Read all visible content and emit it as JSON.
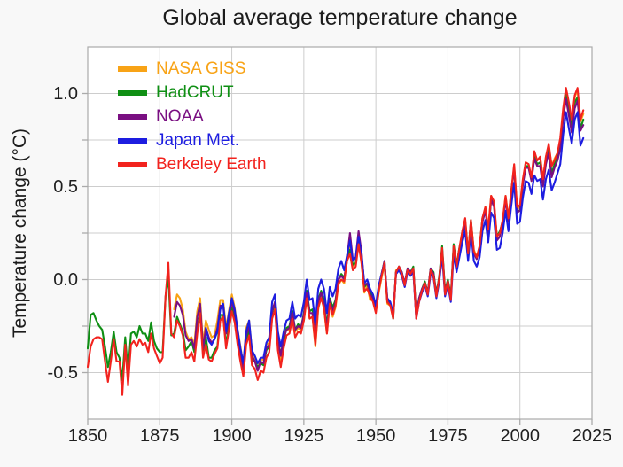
{
  "window": {
    "kind": "static chart image",
    "background": "#f8f8f8"
  },
  "colors": {
    "figure_bg": "#f8f8f8",
    "plot_bg": "#ffffff",
    "grid": "#cdcdcd",
    "spine": "#aaaaaa",
    "tick": "#aaaaaa",
    "text": "#1c1c1c"
  },
  "chart_data": {
    "type": "line",
    "title": "Global average temperature change",
    "xlabel": "",
    "ylabel": "Temperature change (°C)",
    "xlim": [
      1850,
      2025
    ],
    "ylim": [
      -0.75,
      1.25
    ],
    "grid": true,
    "grid_y_step": 0.25,
    "grid_x_step_years": 25,
    "legend_position": "top-left inside plot, no frame",
    "xticks": [
      {
        "v": 1850,
        "label": "1850"
      },
      {
        "v": 1875,
        "label": "1875"
      },
      {
        "v": 1900,
        "label": "1900"
      },
      {
        "v": 1925,
        "label": "1925"
      },
      {
        "v": 1950,
        "label": "1950"
      },
      {
        "v": 1975,
        "label": "1975"
      },
      {
        "v": 2000,
        "label": "2000"
      },
      {
        "v": 2025,
        "label": "2025"
      }
    ],
    "yticks": [
      {
        "v": 1.0,
        "label": "1.0"
      },
      {
        "v": 0.5,
        "label": "0.5"
      },
      {
        "v": 0.0,
        "label": "0.0"
      },
      {
        "v": -0.5,
        "label": "-0.5"
      }
    ],
    "units": "°C anomaly",
    "series": [
      {
        "name": "NASA GISS",
        "color": "#f8a316",
        "start_year": 1880,
        "values": [
          -0.16,
          -0.08,
          -0.1,
          -0.16,
          -0.28,
          -0.32,
          -0.31,
          -0.35,
          -0.17,
          -0.1,
          -0.35,
          -0.22,
          -0.27,
          -0.31,
          -0.3,
          -0.22,
          -0.11,
          -0.11,
          -0.26,
          -0.17,
          -0.08,
          -0.15,
          -0.27,
          -0.36,
          -0.46,
          -0.26,
          -0.22,
          -0.38,
          -0.42,
          -0.48,
          -0.43,
          -0.43,
          -0.35,
          -0.34,
          -0.15,
          -0.13,
          -0.35,
          -0.45,
          -0.29,
          -0.27,
          -0.27,
          -0.18,
          -0.28,
          -0.26,
          -0.27,
          -0.22,
          -0.1,
          -0.21,
          -0.2,
          -0.36,
          -0.16,
          -0.09,
          -0.16,
          -0.29,
          -0.12,
          -0.2,
          -0.15,
          -0.03,
          0.0,
          -0.02,
          0.13,
          0.19,
          0.07,
          0.09,
          0.2,
          0.09,
          -0.07,
          -0.03,
          -0.11,
          -0.11,
          -0.17,
          -0.07,
          0.01,
          0.08,
          -0.13,
          -0.14,
          -0.19,
          0.05,
          0.06,
          0.03,
          -0.03,
          0.06,
          0.03,
          0.05,
          -0.2,
          -0.11,
          -0.06,
          -0.02,
          -0.08,
          0.05,
          0.03,
          -0.08,
          0.01,
          0.16,
          -0.07,
          -0.01,
          -0.1,
          0.18,
          0.07,
          0.16,
          0.26,
          0.32,
          0.14,
          0.31,
          0.16,
          0.12,
          0.18,
          0.32,
          0.39,
          0.27,
          0.45,
          0.41,
          0.22,
          0.23,
          0.31,
          0.45,
          0.33,
          0.46,
          0.61,
          0.38,
          0.39,
          0.53,
          0.63,
          0.62,
          0.53,
          0.68,
          0.64,
          0.66,
          0.54,
          0.66,
          0.72,
          0.61,
          0.65,
          0.68,
          0.74,
          0.9,
          1.02,
          0.92,
          0.85,
          0.98,
          1.02,
          0.85,
          0.89
        ]
      },
      {
        "name": "HadCRUT",
        "color": "#0f8f14",
        "start_year": 1850,
        "values": [
          -0.37,
          -0.19,
          -0.18,
          -0.22,
          -0.25,
          -0.27,
          -0.36,
          -0.47,
          -0.39,
          -0.28,
          -0.39,
          -0.42,
          -0.54,
          -0.31,
          -0.5,
          -0.29,
          -0.28,
          -0.31,
          -0.25,
          -0.29,
          -0.29,
          -0.33,
          -0.23,
          -0.33,
          -0.37,
          -0.39,
          -0.39,
          -0.09,
          0.01,
          -0.3,
          -0.29,
          -0.2,
          -0.24,
          -0.28,
          -0.38,
          -0.36,
          -0.33,
          -0.39,
          -0.27,
          -0.17,
          -0.39,
          -0.31,
          -0.42,
          -0.42,
          -0.38,
          -0.36,
          -0.19,
          -0.19,
          -0.35,
          -0.25,
          -0.15,
          -0.21,
          -0.32,
          -0.42,
          -0.5,
          -0.33,
          -0.27,
          -0.44,
          -0.44,
          -0.47,
          -0.45,
          -0.46,
          -0.38,
          -0.36,
          -0.18,
          -0.12,
          -0.33,
          -0.4,
          -0.33,
          -0.26,
          -0.25,
          -0.17,
          -0.27,
          -0.24,
          -0.26,
          -0.18,
          -0.06,
          -0.17,
          -0.16,
          -0.3,
          -0.11,
          -0.06,
          -0.11,
          -0.25,
          -0.1,
          -0.15,
          -0.11,
          0.0,
          0.03,
          0.01,
          0.1,
          0.16,
          0.08,
          0.09,
          0.23,
          0.14,
          -0.04,
          -0.02,
          -0.06,
          -0.1,
          -0.17,
          -0.04,
          0.03,
          0.1,
          -0.11,
          -0.13,
          -0.21,
          0.04,
          0.07,
          0.04,
          -0.03,
          0.06,
          0.04,
          0.07,
          -0.19,
          -0.1,
          -0.05,
          -0.01,
          -0.07,
          0.06,
          0.04,
          -0.08,
          0.02,
          0.18,
          -0.06,
          0.0,
          -0.09,
          0.19,
          0.08,
          0.17,
          0.24,
          0.31,
          0.14,
          0.32,
          0.14,
          0.12,
          0.17,
          0.33,
          0.38,
          0.26,
          0.43,
          0.4,
          0.23,
          0.26,
          0.31,
          0.44,
          0.32,
          0.48,
          0.6,
          0.37,
          0.37,
          0.52,
          0.61,
          0.61,
          0.54,
          0.66,
          0.62,
          0.63,
          0.52,
          0.63,
          0.7,
          0.57,
          0.62,
          0.66,
          0.71,
          0.88,
          1.0,
          0.9,
          0.82,
          0.95,
          0.98,
          0.81,
          0.86
        ]
      },
      {
        "name": "NOAA",
        "color": "#7a0f82",
        "start_year": 1880,
        "values": [
          -0.2,
          -0.12,
          -0.14,
          -0.19,
          -0.3,
          -0.33,
          -0.32,
          -0.37,
          -0.2,
          -0.13,
          -0.37,
          -0.26,
          -0.31,
          -0.34,
          -0.32,
          -0.26,
          -0.14,
          -0.14,
          -0.29,
          -0.2,
          -0.12,
          -0.18,
          -0.3,
          -0.39,
          -0.48,
          -0.3,
          -0.25,
          -0.41,
          -0.44,
          -0.49,
          -0.44,
          -0.45,
          -0.37,
          -0.35,
          -0.17,
          -0.12,
          -0.33,
          -0.41,
          -0.31,
          -0.27,
          -0.26,
          -0.18,
          -0.27,
          -0.25,
          -0.26,
          -0.19,
          -0.07,
          -0.18,
          -0.18,
          -0.32,
          -0.12,
          -0.07,
          -0.13,
          -0.27,
          -0.11,
          -0.17,
          -0.12,
          0.0,
          0.02,
          0.0,
          0.12,
          0.25,
          0.11,
          0.12,
          0.26,
          0.15,
          -0.03,
          -0.02,
          -0.08,
          -0.1,
          -0.16,
          -0.05,
          0.03,
          0.1,
          -0.12,
          -0.13,
          -0.2,
          0.04,
          0.07,
          0.04,
          -0.02,
          0.06,
          0.04,
          0.06,
          -0.2,
          -0.1,
          -0.05,
          -0.02,
          -0.07,
          0.06,
          0.03,
          -0.08,
          0.01,
          0.16,
          -0.07,
          -0.01,
          -0.1,
          0.17,
          0.07,
          0.16,
          0.24,
          0.3,
          0.13,
          0.3,
          0.14,
          0.11,
          0.17,
          0.31,
          0.37,
          0.25,
          0.43,
          0.39,
          0.21,
          0.23,
          0.3,
          0.43,
          0.31,
          0.47,
          0.6,
          0.36,
          0.37,
          0.51,
          0.6,
          0.6,
          0.53,
          0.65,
          0.61,
          0.61,
          0.5,
          0.62,
          0.68,
          0.55,
          0.6,
          0.64,
          0.7,
          0.87,
          0.97,
          0.88,
          0.79,
          0.92,
          0.96,
          0.8,
          0.83
        ]
      },
      {
        "name": "Japan Met.",
        "color": "#1d1de0",
        "start_year": 1891,
        "values": [
          -0.26,
          -0.33,
          -0.35,
          -0.32,
          -0.28,
          -0.16,
          -0.13,
          -0.28,
          -0.18,
          -0.1,
          -0.16,
          -0.27,
          -0.37,
          -0.45,
          -0.28,
          -0.22,
          -0.38,
          -0.41,
          -0.45,
          -0.42,
          -0.42,
          -0.34,
          -0.31,
          -0.12,
          -0.08,
          -0.28,
          -0.36,
          -0.28,
          -0.22,
          -0.21,
          -0.12,
          -0.21,
          -0.19,
          -0.2,
          -0.12,
          0.0,
          -0.11,
          -0.1,
          -0.24,
          -0.05,
          0.0,
          -0.05,
          -0.18,
          -0.04,
          -0.09,
          -0.05,
          0.06,
          0.1,
          0.05,
          0.13,
          0.21,
          0.1,
          0.12,
          0.23,
          0.13,
          -0.02,
          0.0,
          -0.05,
          -0.08,
          -0.14,
          -0.03,
          0.03,
          0.09,
          -0.1,
          -0.12,
          -0.18,
          0.03,
          0.05,
          0.02,
          -0.04,
          0.04,
          0.02,
          0.04,
          -0.21,
          -0.12,
          -0.07,
          -0.03,
          -0.09,
          0.03,
          0.01,
          -0.1,
          -0.01,
          0.13,
          -0.09,
          -0.03,
          -0.12,
          0.14,
          0.04,
          0.12,
          0.2,
          0.26,
          0.1,
          0.26,
          0.1,
          0.07,
          0.12,
          0.26,
          0.32,
          0.2,
          0.36,
          0.33,
          0.16,
          0.17,
          0.25,
          0.37,
          0.26,
          0.4,
          0.52,
          0.3,
          0.31,
          0.44,
          0.53,
          0.52,
          0.46,
          0.56,
          0.53,
          0.54,
          0.43,
          0.54,
          0.59,
          0.48,
          0.52,
          0.57,
          0.62,
          0.78,
          0.9,
          0.81,
          0.73,
          0.86,
          0.9,
          0.72,
          0.76
        ]
      },
      {
        "name": "Berkeley Earth",
        "color": "#f2231e",
        "start_year": 1850,
        "values": [
          -0.47,
          -0.36,
          -0.32,
          -0.31,
          -0.31,
          -0.32,
          -0.44,
          -0.55,
          -0.44,
          -0.32,
          -0.44,
          -0.44,
          -0.62,
          -0.35,
          -0.57,
          -0.35,
          -0.33,
          -0.36,
          -0.32,
          -0.35,
          -0.34,
          -0.39,
          -0.29,
          -0.37,
          -0.41,
          -0.45,
          -0.42,
          -0.09,
          0.09,
          -0.29,
          -0.31,
          -0.22,
          -0.25,
          -0.3,
          -0.42,
          -0.42,
          -0.39,
          -0.44,
          -0.29,
          -0.18,
          -0.42,
          -0.35,
          -0.43,
          -0.44,
          -0.4,
          -0.37,
          -0.22,
          -0.2,
          -0.37,
          -0.27,
          -0.17,
          -0.23,
          -0.35,
          -0.44,
          -0.52,
          -0.35,
          -0.3,
          -0.46,
          -0.48,
          -0.54,
          -0.49,
          -0.5,
          -0.42,
          -0.39,
          -0.21,
          -0.16,
          -0.38,
          -0.47,
          -0.37,
          -0.3,
          -0.29,
          -0.21,
          -0.31,
          -0.28,
          -0.29,
          -0.22,
          -0.1,
          -0.21,
          -0.2,
          -0.35,
          -0.15,
          -0.1,
          -0.15,
          -0.29,
          -0.13,
          -0.19,
          -0.14,
          -0.02,
          0.0,
          -0.01,
          0.1,
          0.14,
          0.05,
          0.07,
          0.19,
          0.09,
          -0.06,
          -0.05,
          -0.09,
          -0.12,
          -0.18,
          -0.06,
          0.02,
          0.09,
          -0.12,
          -0.14,
          -0.21,
          0.04,
          0.07,
          0.03,
          -0.03,
          0.05,
          0.03,
          0.06,
          -0.21,
          -0.12,
          -0.06,
          -0.02,
          -0.08,
          0.05,
          0.02,
          -0.09,
          0.01,
          0.17,
          -0.08,
          -0.01,
          -0.11,
          0.18,
          0.07,
          0.17,
          0.26,
          0.33,
          0.14,
          0.32,
          0.15,
          0.12,
          0.18,
          0.33,
          0.39,
          0.27,
          0.45,
          0.42,
          0.23,
          0.25,
          0.32,
          0.45,
          0.33,
          0.48,
          0.62,
          0.39,
          0.4,
          0.54,
          0.63,
          0.62,
          0.55,
          0.69,
          0.64,
          0.66,
          0.54,
          0.66,
          0.73,
          0.61,
          0.64,
          0.68,
          0.76,
          0.92,
          1.03,
          0.95,
          0.86,
          0.99,
          1.03,
          0.86,
          0.91
        ]
      }
    ]
  }
}
